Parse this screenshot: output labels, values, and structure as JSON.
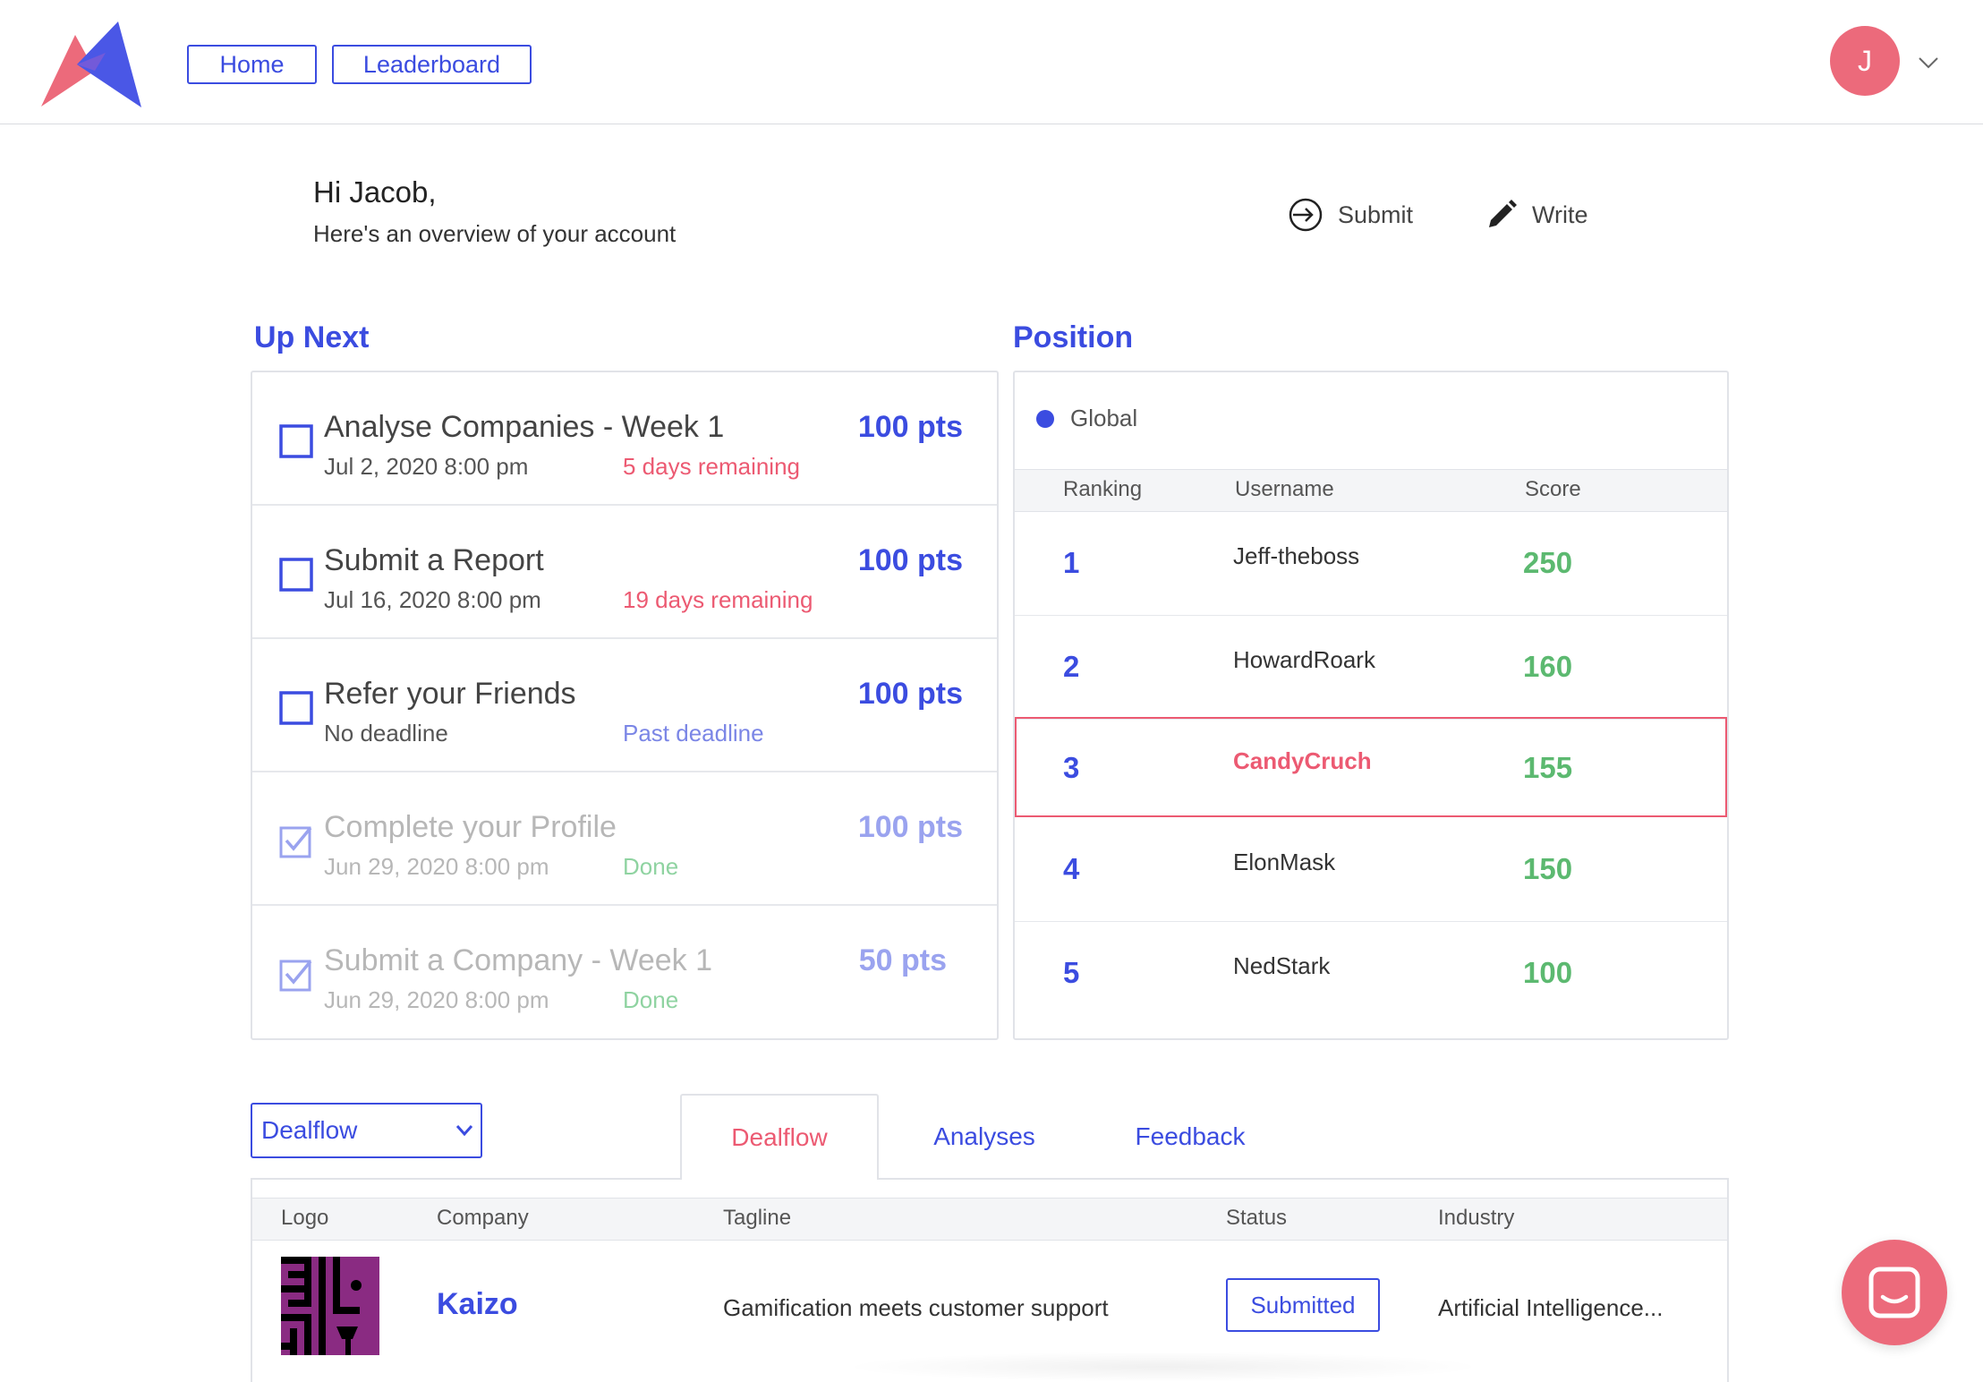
{
  "nav": {
    "home_label": "Home",
    "leaderboard_label": "Leaderboard",
    "avatar_initial": "J",
    "brand_colors": {
      "blue": "#3b4ce0",
      "pink": "#ec6a7b"
    }
  },
  "greeting": {
    "title": "Hi Jacob,",
    "subtitle": "Here's an overview of your account"
  },
  "actions": {
    "submit_label": "Submit",
    "write_label": "Write"
  },
  "up_next": {
    "heading": "Up Next",
    "tasks": [
      {
        "title": "Analyse Companies - Week 1",
        "date": "Jul 2, 2020 8:00 pm",
        "status": "5 days remaining",
        "points": "100 pts",
        "done": false
      },
      {
        "title": "Submit a Report",
        "date": "Jul 16, 2020 8:00 pm",
        "status": "19 days remaining",
        "points": "100 pts",
        "done": false
      },
      {
        "title": "Refer your Friends",
        "date": "No deadline",
        "status": "Past deadline",
        "points": "100 pts",
        "done": false
      },
      {
        "title": "Complete your Profile",
        "date": "Jun 29, 2020 8:00 pm",
        "status": "Done",
        "points": "100 pts",
        "done": true
      },
      {
        "title": "Submit a Company - Week 1",
        "date": "Jun 29, 2020 8:00 pm",
        "status": "Done",
        "points": "50 pts",
        "done": true
      }
    ]
  },
  "position": {
    "heading": "Position",
    "filter_label": "Global",
    "columns": {
      "ranking": "Ranking",
      "username": "Username",
      "score": "Score"
    },
    "rows": [
      {
        "rank": "1",
        "username": "Jeff-theboss",
        "score": "250",
        "current_user": false
      },
      {
        "rank": "2",
        "username": "HowardRoark",
        "score": "160",
        "current_user": false
      },
      {
        "rank": "3",
        "username": "CandyCruch",
        "score": "155",
        "current_user": true
      },
      {
        "rank": "4",
        "username": "ElonMask",
        "score": "150",
        "current_user": false
      },
      {
        "rank": "5",
        "username": "NedStark",
        "score": "100",
        "current_user": false
      }
    ]
  },
  "bottom": {
    "select_value": "Dealflow",
    "tabs": [
      "Dealflow",
      "Analyses",
      "Feedback"
    ],
    "active_tab": "Dealflow",
    "table": {
      "columns": {
        "logo": "Logo",
        "company": "Company",
        "tagline": "Tagline",
        "status": "Status",
        "industry": "Industry"
      },
      "rows": [
        {
          "company": "Kaizo",
          "tagline": "Gamification meets customer support",
          "status": "Submitted",
          "industry": "Artificial Intelligence..."
        }
      ]
    }
  }
}
